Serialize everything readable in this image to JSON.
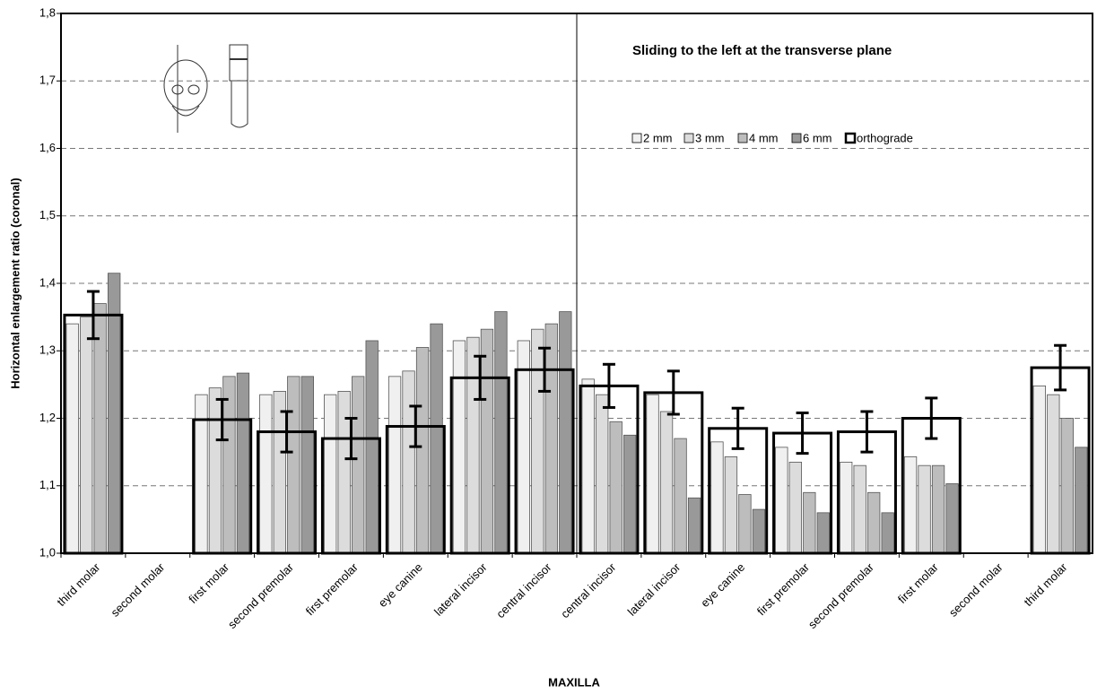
{
  "chart_data": {
    "type": "bar",
    "title": "Sliding to the left at the transverse plane",
    "x_label": "MAXILLA",
    "y_label": "Horizontal enlargement ratio (coronal)",
    "categories": [
      "third molar",
      "second molar",
      "first molar",
      "second premolar",
      "first premolar",
      "eye canine",
      "lateral incisor",
      "central incisor",
      "central incisor",
      "lateral incisor",
      "eye canine",
      "first premolar",
      "second premolar",
      "first molar",
      "second molar",
      "third molar"
    ],
    "series": [
      {
        "name": "2 mm",
        "color": "#f0f0f0",
        "values": [
          1.34,
          null,
          1.235,
          1.235,
          1.235,
          1.262,
          1.315,
          1.315,
          1.258,
          1.235,
          1.165,
          1.157,
          1.135,
          1.143,
          null,
          1.248
        ]
      },
      {
        "name": "3 mm",
        "color": "#dcdcdc",
        "values": [
          1.35,
          null,
          1.245,
          1.24,
          1.24,
          1.27,
          1.32,
          1.332,
          1.235,
          1.21,
          1.143,
          1.135,
          1.13,
          1.13,
          null,
          1.235
        ]
      },
      {
        "name": "4 mm",
        "color": "#bdbdbd",
        "values": [
          1.37,
          null,
          1.262,
          1.262,
          1.262,
          1.305,
          1.332,
          1.34,
          1.195,
          1.17,
          1.087,
          1.09,
          1.09,
          1.13,
          null,
          1.2
        ]
      },
      {
        "name": "6 mm",
        "color": "#999999",
        "values": [
          1.415,
          null,
          1.267,
          1.262,
          1.315,
          1.34,
          1.358,
          1.358,
          1.175,
          1.082,
          1.065,
          1.06,
          1.06,
          1.103,
          null,
          1.157
        ]
      },
      {
        "name": "orthograde",
        "color": "#000000",
        "values": [
          1.353,
          null,
          1.198,
          1.18,
          1.17,
          1.188,
          1.26,
          1.272,
          1.248,
          1.238,
          1.185,
          1.178,
          1.18,
          1.2,
          null,
          1.275
        ],
        "errors": [
          0.035,
          null,
          0.03,
          0.03,
          0.03,
          0.03,
          0.032,
          0.032,
          0.032,
          0.032,
          0.03,
          0.03,
          0.03,
          0.03,
          null,
          0.033
        ]
      }
    ],
    "ylim": [
      1.0,
      1.8
    ],
    "yticks": [
      {
        "value": 1.0,
        "label": "1,0"
      },
      {
        "value": 1.1,
        "label": "1,1"
      },
      {
        "value": 1.2,
        "label": "1,2"
      },
      {
        "value": 1.3,
        "label": "1,3"
      },
      {
        "value": 1.4,
        "label": "1,4"
      },
      {
        "value": 1.5,
        "label": "1,5"
      },
      {
        "value": 1.6,
        "label": "1,6"
      },
      {
        "value": 1.7,
        "label": "1,7"
      },
      {
        "value": 1.8,
        "label": "1,8"
      }
    ],
    "grid": true
  }
}
